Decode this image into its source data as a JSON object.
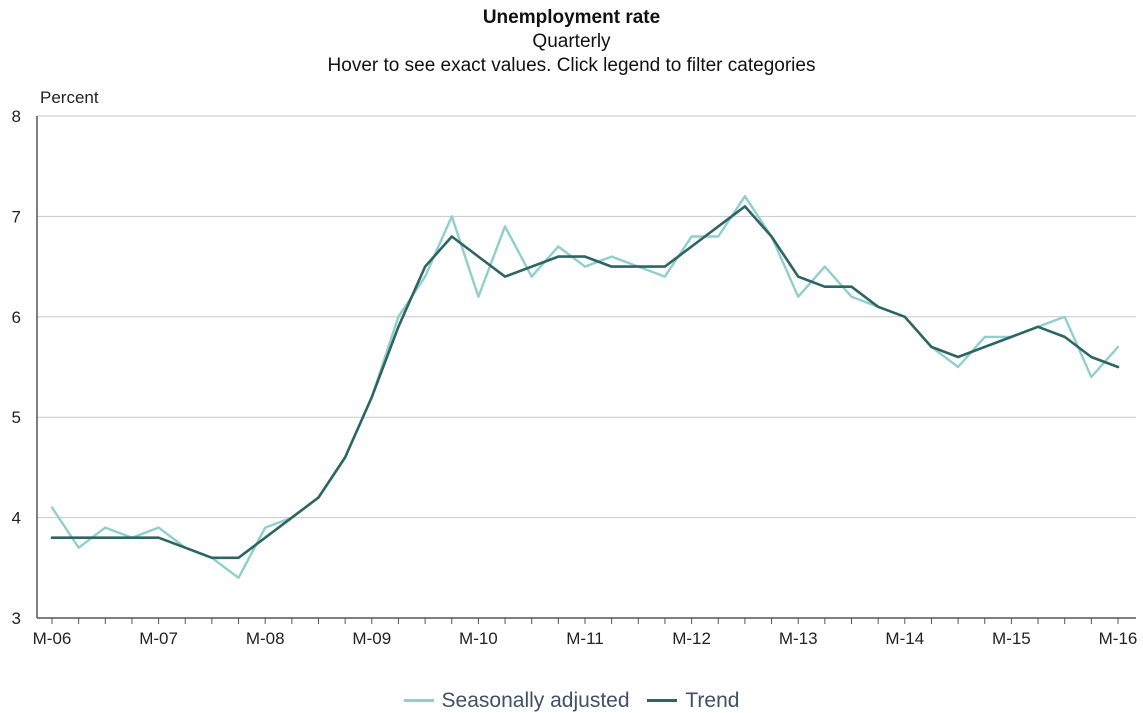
{
  "chart_data": {
    "type": "line",
    "title": "Unemployment rate",
    "subtitle": "Quarterly",
    "hint": "Hover to see exact values. Click legend to filter categories",
    "ylabel": "Percent",
    "ylim": [
      3,
      8
    ],
    "yticks": [
      3,
      4,
      5,
      6,
      7,
      8
    ],
    "grid": true,
    "legend_position": "bottom",
    "x_ticks": [
      "M-06",
      "M-07",
      "M-08",
      "M-09",
      "M-10",
      "M-11",
      "M-12",
      "M-13",
      "M-14",
      "M-15",
      "M-16"
    ],
    "x": [
      "2006Q1",
      "2006Q2",
      "2006Q3",
      "2006Q4",
      "2007Q1",
      "2007Q2",
      "2007Q3",
      "2007Q4",
      "2008Q1",
      "2008Q2",
      "2008Q3",
      "2008Q4",
      "2009Q1",
      "2009Q2",
      "2009Q3",
      "2009Q4",
      "2010Q1",
      "2010Q2",
      "2010Q3",
      "2010Q4",
      "2011Q1",
      "2011Q2",
      "2011Q3",
      "2011Q4",
      "2012Q1",
      "2012Q2",
      "2012Q3",
      "2012Q4",
      "2013Q1",
      "2013Q2",
      "2013Q3",
      "2013Q4",
      "2014Q1",
      "2014Q2",
      "2014Q3",
      "2014Q4",
      "2015Q1",
      "2015Q2",
      "2015Q3",
      "2015Q4",
      "2016Q1"
    ],
    "series": [
      {
        "name": "Seasonally adjusted",
        "color": "#8fcfcc",
        "values": [
          4.1,
          3.7,
          3.9,
          3.8,
          3.9,
          3.7,
          3.6,
          3.4,
          3.9,
          4.0,
          4.2,
          4.6,
          5.2,
          6.0,
          6.4,
          7.0,
          6.2,
          6.9,
          6.4,
          6.7,
          6.5,
          6.6,
          6.5,
          6.4,
          6.8,
          6.8,
          7.2,
          6.8,
          6.2,
          6.5,
          6.2,
          6.1,
          6.0,
          5.7,
          5.5,
          5.8,
          5.8,
          5.9,
          6.0,
          5.4,
          5.7
        ]
      },
      {
        "name": "Trend",
        "color": "#2e6464",
        "values": [
          3.8,
          3.8,
          3.8,
          3.8,
          3.8,
          3.7,
          3.6,
          3.6,
          3.8,
          4.0,
          4.2,
          4.6,
          5.2,
          5.9,
          6.5,
          6.8,
          6.6,
          6.4,
          6.5,
          6.6,
          6.6,
          6.5,
          6.5,
          6.5,
          6.7,
          6.9,
          7.1,
          6.8,
          6.4,
          6.3,
          6.3,
          6.1,
          6.0,
          5.7,
          5.6,
          5.7,
          5.8,
          5.9,
          5.8,
          5.6,
          5.5
        ]
      }
    ]
  }
}
